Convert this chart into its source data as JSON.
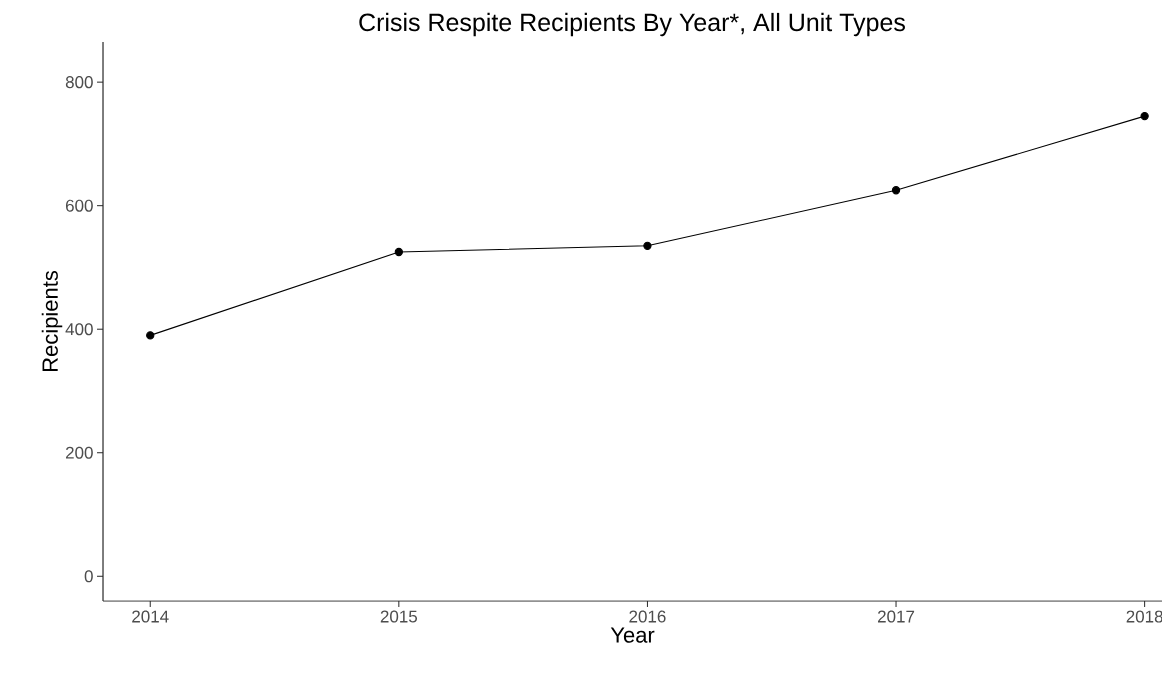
{
  "chart_data": {
    "type": "line",
    "title": "Crisis Respite Recipients By Year*, All Unit Types",
    "xlabel": "Year",
    "ylabel": "Recipients",
    "x": [
      2014,
      2015,
      2016,
      2017,
      2018
    ],
    "series": [
      {
        "color": "#000000",
        "values": [
          390,
          525,
          535,
          625,
          745
        ]
      }
    ],
    "xlim": [
      2013.81,
      2018.07
    ],
    "ylim": [
      -40,
      865
    ],
    "xticks": [
      2014,
      2015,
      2016,
      2017,
      2018
    ],
    "yticks": [
      0,
      200,
      400,
      600,
      800
    ],
    "grid": false,
    "marker": "circle",
    "line_style": "solid"
  }
}
